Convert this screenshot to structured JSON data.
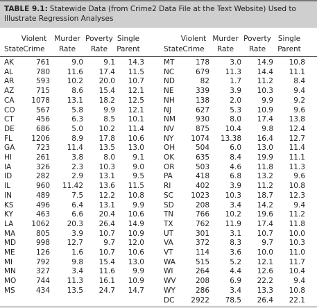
{
  "title": {
    "label": "TABLE 9.1:",
    "text": "Statewide Data (from Crime2 Data File at the Text Website) Used to Illustrate Regression Analyses"
  },
  "table": {
    "header": [
      [
        "",
        "State"
      ],
      [
        "Violent",
        "Crime"
      ],
      [
        "Murder",
        "Rate"
      ],
      [
        "Poverty",
        "Rate"
      ],
      [
        "Single",
        "Parent"
      ]
    ],
    "left_rows": [
      [
        "AK",
        "761",
        "9.0",
        "9.1",
        "14.3"
      ],
      [
        "AL",
        "780",
        "11.6",
        "17.4",
        "11.5"
      ],
      [
        "AR",
        "593",
        "10.2",
        "20.0",
        "10.7"
      ],
      [
        "AZ",
        "715",
        "8.6",
        "15.4",
        "12.1"
      ],
      [
        "CA",
        "1078",
        "13.1",
        "18.2",
        "12.5"
      ],
      [
        "CO",
        "567",
        "5.8",
        "9.9",
        "12.1"
      ],
      [
        "CT",
        "456",
        "6.3",
        "8.5",
        "10.1"
      ],
      [
        "DE",
        "686",
        "5.0",
        "10.2",
        "11.4"
      ],
      [
        "FL",
        "1206",
        "8.9",
        "17.8",
        "10.6"
      ],
      [
        "GA",
        "723",
        "11.4",
        "13.5",
        "13.0"
      ],
      [
        "HI",
        "261",
        "3.8",
        "8.0",
        "9.1"
      ],
      [
        "IA",
        "326",
        "2.3",
        "10.3",
        "9.0"
      ],
      [
        "ID",
        "282",
        "2.9",
        "13.1",
        "9.5"
      ],
      [
        "IL",
        "960",
        "11.42",
        "13.6",
        "11.5"
      ],
      [
        "IN",
        "489",
        "7.5",
        "12.2",
        "10.8"
      ],
      [
        "KS",
        "496",
        "6.4",
        "13.1",
        "9.9"
      ],
      [
        "KY",
        "463",
        "6.6",
        "20.4",
        "10.6"
      ],
      [
        "LA",
        "1062",
        "20.3",
        "26.4",
        "14.9"
      ],
      [
        "MA",
        "805",
        "3.9",
        "10.7",
        "10.9"
      ],
      [
        "MD",
        "998",
        "12.7",
        "9.7",
        "12.0"
      ],
      [
        "ME",
        "126",
        "1.6",
        "10.7",
        "10.6"
      ],
      [
        "MI",
        "792",
        "9.8",
        "15.4",
        "13.0"
      ],
      [
        "MN",
        "327",
        "3.4",
        "11.6",
        "9.9"
      ],
      [
        "MO",
        "744",
        "11.3",
        "16.1",
        "10.9"
      ],
      [
        "MS",
        "434",
        "13.5",
        "24.7",
        "14.7"
      ]
    ],
    "right_rows": [
      [
        "MT",
        "178",
        "3.0",
        "14.9",
        "10.8"
      ],
      [
        "NC",
        "679",
        "11.3",
        "14.4",
        "11.1"
      ],
      [
        "ND",
        "82",
        "1.7",
        "11.2",
        "8.4"
      ],
      [
        "NE",
        "339",
        "3.9",
        "10.3",
        "9.4"
      ],
      [
        "NH",
        "138",
        "2.0",
        "9.9",
        "9.2"
      ],
      [
        "NJ",
        "627",
        "5.3",
        "10.9",
        "9.6"
      ],
      [
        "NM",
        "930",
        "8.0",
        "17.4",
        "13.8"
      ],
      [
        "NV",
        "875",
        "10.4",
        "9.8",
        "12.4"
      ],
      [
        "NY",
        "1074",
        "13.38",
        "16.4",
        "12.7"
      ],
      [
        "OH",
        "504",
        "6.0",
        "13.0",
        "11.4"
      ],
      [
        "OK",
        "635",
        "8.4",
        "19.9",
        "11.1"
      ],
      [
        "OR",
        "503",
        "4.6",
        "11.8",
        "11.3"
      ],
      [
        "PA",
        "418",
        "6.8",
        "13.2",
        "9.6"
      ],
      [
        "RI",
        "402",
        "3.9",
        "11.2",
        "10.8"
      ],
      [
        "SC",
        "1023",
        "10.3",
        "18.7",
        "12.3"
      ],
      [
        "SD",
        "208",
        "3.4",
        "14.2",
        "9.4"
      ],
      [
        "TN",
        "766",
        "10.2",
        "19.6",
        "11.2"
      ],
      [
        "TX",
        "762",
        "11.9",
        "17.4",
        "11.8"
      ],
      [
        "UT",
        "301",
        "3.1",
        "10.7",
        "10.0"
      ],
      [
        "VA",
        "372",
        "8.3",
        "9.7",
        "10.3"
      ],
      [
        "VT",
        "114",
        "3.6",
        "10.0",
        "11.0"
      ],
      [
        "WA",
        "515",
        "5.2",
        "12.1",
        "11.7"
      ],
      [
        "WI",
        "264",
        "4.4",
        "12.6",
        "10.4"
      ],
      [
        "WV",
        "208",
        "6.9",
        "22.2",
        "9.4"
      ],
      [
        "WY",
        "286",
        "3.4",
        "13.3",
        "10.8"
      ],
      [
        "DC",
        "2922",
        "78.5",
        "26.4",
        "22.1"
      ]
    ]
  }
}
